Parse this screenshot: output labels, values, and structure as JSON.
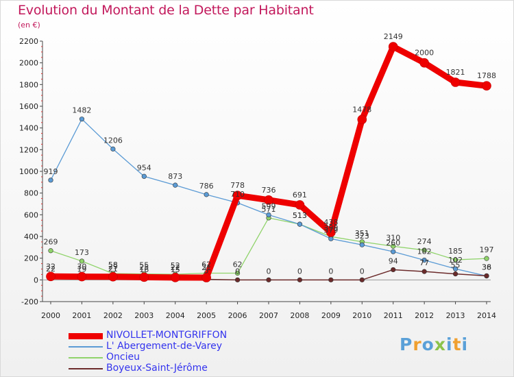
{
  "title": "Evolution du Montant de la Dette par Habitant",
  "unit": "(en €)",
  "logo": {
    "text": "Proxiti",
    "colors": [
      "#5aa0d8",
      "#f0a030",
      "#5aa0d8",
      "#8bc34a",
      "#5aa0d8",
      "#f0a030",
      "#5aa0d8"
    ]
  },
  "chart_data": {
    "type": "line",
    "title": "Evolution du Montant de la Dette par Habitant",
    "ylabel": "(en €)",
    "x": [
      "2000",
      "2001",
      "2002",
      "2003",
      "2004",
      "2005",
      "2006",
      "2007",
      "2008",
      "2009",
      "2010",
      "2011",
      "2012",
      "2013",
      "2014"
    ],
    "ylim": [
      -200,
      2200
    ],
    "yticks": [
      -200,
      0,
      200,
      400,
      600,
      800,
      1000,
      1200,
      1400,
      1600,
      1800,
      2000,
      2200
    ],
    "grid": false,
    "legend": "bottom-left",
    "series": [
      {
        "name": "NIVOLLET-MONTGRIFFON",
        "color": "#ee0000",
        "values": [
          32,
          30,
          29,
          25,
          22,
          21,
          778,
          736,
          691,
          438,
          1478,
          2149,
          2000,
          1821,
          1788
        ]
      },
      {
        "name": "L' Abergement-de-Varey",
        "color": "#5b9bd5",
        "values": [
          919,
          1482,
          1206,
          954,
          873,
          786,
          710,
          599,
          513,
          379,
          323,
          260,
          182,
          102,
          36
        ]
      },
      {
        "name": "Oncieu",
        "color": "#8fd36a",
        "values": [
          269,
          173,
          58,
          55,
          52,
          62,
          62,
          571,
          513,
          399,
          351,
          310,
          274,
          185,
          197
        ]
      },
      {
        "name": "Boyeux-Saint-Jérôme",
        "color": "#6b2a2a",
        "values": [
          22,
          19,
          21,
          16,
          15,
          5,
          0,
          0,
          0,
          0,
          0,
          94,
          77,
          55,
          38
        ]
      }
    ]
  }
}
